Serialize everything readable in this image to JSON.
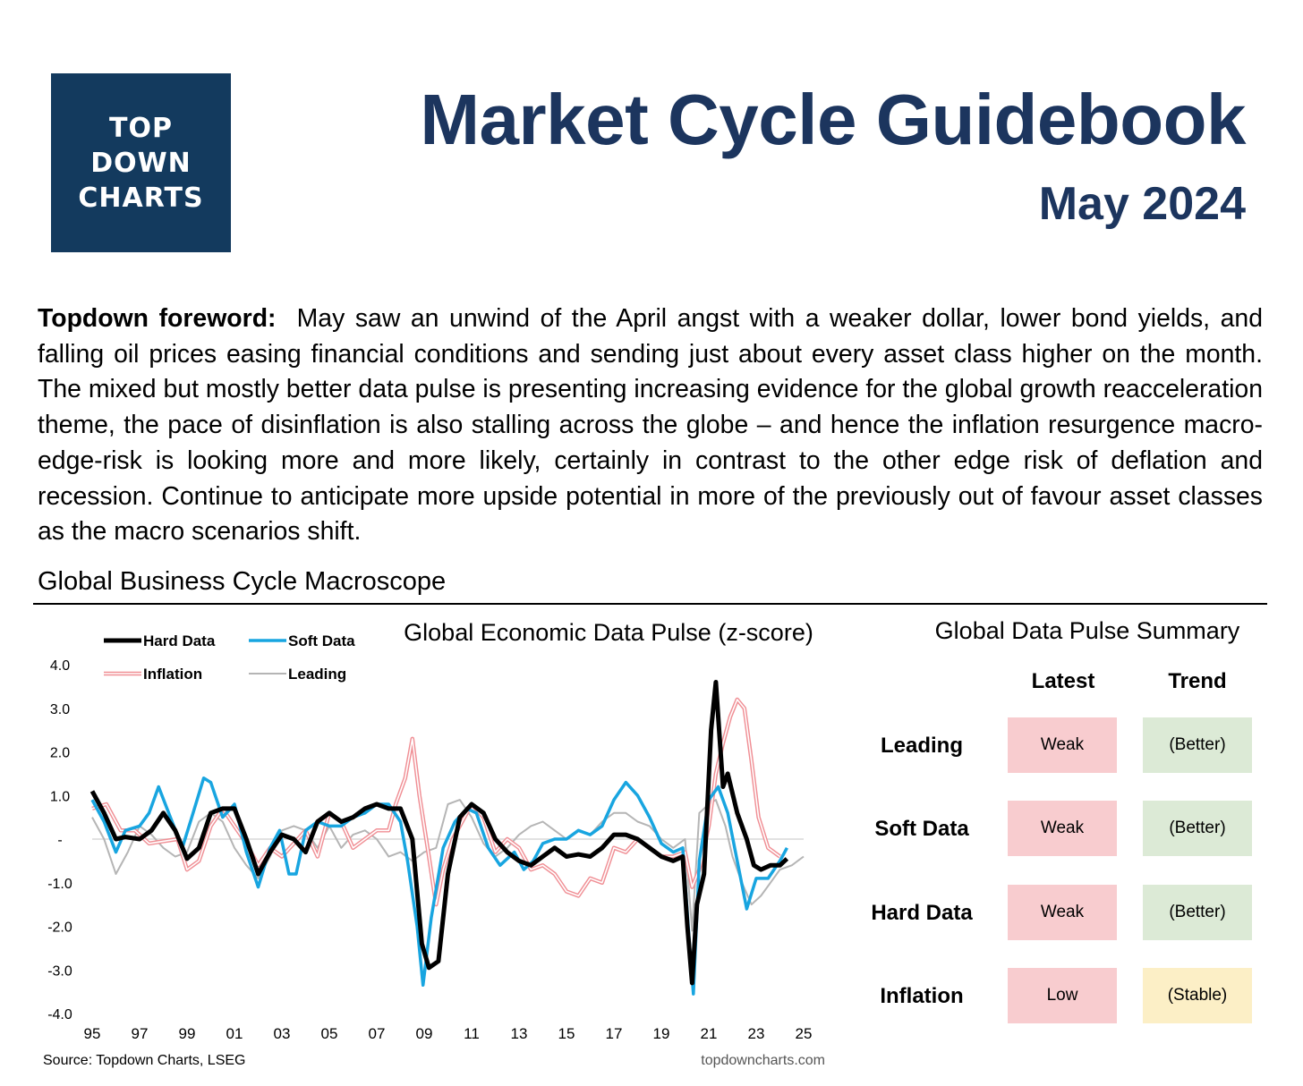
{
  "logo": {
    "line1": "TOP",
    "line2": "DOWN",
    "line3": "CHARTS"
  },
  "header": {
    "title": "Market Cycle Guidebook",
    "subtitle": "May 2024"
  },
  "foreword": {
    "label": "Topdown foreword:",
    "text": "May saw an unwind of the April angst with a weaker dollar, lower bond yields, and falling oil prices easing financial conditions and sending just about every asset class higher on the month. The mixed but mostly better data pulse is presenting increasing evidence for the global growth reacceleration theme, the pace of disinflation is also stalling across the globe – and hence the inflation resurgence macro-edge-risk is looking more and more likely, certainly in contrast to the other edge risk of deflation and recession. Continue to anticipate more upside potential in more of the previously out of favour asset classes as the macro scenarios shift."
  },
  "section_title": "Global Business Cycle Macroscope",
  "chart_data": {
    "type": "line",
    "title": "Global Economic Data Pulse (z-score)",
    "xlabel": "",
    "ylabel": "",
    "xlim": [
      1995,
      2025
    ],
    "ylim": [
      -4,
      4
    ],
    "x_ticks": [
      1995,
      1997,
      1999,
      2001,
      2003,
      2005,
      2007,
      2009,
      2011,
      2013,
      2015,
      2017,
      2019,
      2021,
      2023,
      2025
    ],
    "x_tick_labels": [
      "95",
      "97",
      "99",
      "01",
      "03",
      "05",
      "07",
      "09",
      "11",
      "13",
      "15",
      "17",
      "19",
      "21",
      "23",
      "25"
    ],
    "y_ticks": [
      4,
      3,
      2,
      1,
      0,
      -1,
      -2,
      -3,
      -4
    ],
    "y_tick_labels": [
      "4.0",
      "3.0",
      "2.0",
      "1.0",
      "-",
      "-1.0",
      "-2.0",
      "-3.0",
      "-4.0"
    ],
    "source": "Source: Topdown Charts, LSEG",
    "watermark": "topdowncharts.com",
    "series": [
      {
        "name": "Hard Data",
        "color": "#000000",
        "points": [
          [
            1995.0,
            1.1
          ],
          [
            1995.5,
            0.6
          ],
          [
            1996.0,
            0.0
          ],
          [
            1996.4,
            0.05
          ],
          [
            1997.0,
            0.0
          ],
          [
            1997.5,
            0.2
          ],
          [
            1998.0,
            0.6
          ],
          [
            1998.5,
            0.2
          ],
          [
            1999.0,
            -0.45
          ],
          [
            1999.5,
            -0.2
          ],
          [
            2000.0,
            0.6
          ],
          [
            2000.5,
            0.7
          ],
          [
            2001.0,
            0.7
          ],
          [
            2001.5,
            0.0
          ],
          [
            2002.0,
            -0.8
          ],
          [
            2002.5,
            -0.3
          ],
          [
            2003.0,
            0.1
          ],
          [
            2003.5,
            0.0
          ],
          [
            2004.0,
            -0.3
          ],
          [
            2004.5,
            0.4
          ],
          [
            2005.0,
            0.6
          ],
          [
            2005.5,
            0.4
          ],
          [
            2006.0,
            0.5
          ],
          [
            2006.5,
            0.7
          ],
          [
            2007.0,
            0.8
          ],
          [
            2007.5,
            0.7
          ],
          [
            2008.0,
            0.7
          ],
          [
            2008.5,
            0.0
          ],
          [
            2008.9,
            -2.4
          ],
          [
            2009.2,
            -2.95
          ],
          [
            2009.6,
            -2.8
          ],
          [
            2010.0,
            -0.8
          ],
          [
            2010.5,
            0.5
          ],
          [
            2011.0,
            0.8
          ],
          [
            2011.5,
            0.6
          ],
          [
            2012.0,
            0.0
          ],
          [
            2012.5,
            -0.3
          ],
          [
            2013.0,
            -0.5
          ],
          [
            2013.5,
            -0.6
          ],
          [
            2014.0,
            -0.4
          ],
          [
            2014.5,
            -0.2
          ],
          [
            2015.0,
            -0.4
          ],
          [
            2015.5,
            -0.35
          ],
          [
            2016.0,
            -0.4
          ],
          [
            2016.5,
            -0.2
          ],
          [
            2017.0,
            0.1
          ],
          [
            2017.5,
            0.1
          ],
          [
            2018.0,
            0.0
          ],
          [
            2018.5,
            -0.2
          ],
          [
            2019.0,
            -0.4
          ],
          [
            2019.5,
            -0.5
          ],
          [
            2019.9,
            -0.4
          ],
          [
            2020.1,
            -2.0
          ],
          [
            2020.3,
            -3.3
          ],
          [
            2020.5,
            -1.5
          ],
          [
            2020.8,
            -0.8
          ],
          [
            2021.1,
            2.5
          ],
          [
            2021.3,
            3.6
          ],
          [
            2021.6,
            1.2
          ],
          [
            2021.8,
            1.5
          ],
          [
            2022.2,
            0.6
          ],
          [
            2022.6,
            0.0
          ],
          [
            2022.9,
            -0.6
          ],
          [
            2023.2,
            -0.7
          ],
          [
            2023.6,
            -0.6
          ],
          [
            2024.0,
            -0.6
          ],
          [
            2024.3,
            -0.45
          ]
        ]
      },
      {
        "name": "Soft Data",
        "color": "#18a5e0",
        "points": [
          [
            1995.0,
            0.9
          ],
          [
            1995.5,
            0.4
          ],
          [
            1996.0,
            -0.3
          ],
          [
            1996.4,
            0.2
          ],
          [
            1997.0,
            0.3
          ],
          [
            1997.4,
            0.6
          ],
          [
            1997.8,
            1.2
          ],
          [
            1998.3,
            0.5
          ],
          [
            1998.8,
            -0.2
          ],
          [
            1999.2,
            0.5
          ],
          [
            1999.7,
            1.4
          ],
          [
            2000.0,
            1.3
          ],
          [
            2000.5,
            0.5
          ],
          [
            2001.0,
            0.8
          ],
          [
            2001.5,
            -0.3
          ],
          [
            2002.0,
            -1.1
          ],
          [
            2002.5,
            -0.2
          ],
          [
            2002.9,
            0.2
          ],
          [
            2003.3,
            -0.8
          ],
          [
            2003.6,
            -0.8
          ],
          [
            2004.0,
            0.2
          ],
          [
            2004.5,
            0.4
          ],
          [
            2005.0,
            0.3
          ],
          [
            2005.5,
            0.3
          ],
          [
            2006.0,
            0.5
          ],
          [
            2006.5,
            0.6
          ],
          [
            2007.0,
            0.8
          ],
          [
            2007.5,
            0.8
          ],
          [
            2008.0,
            0.4
          ],
          [
            2008.3,
            -0.5
          ],
          [
            2008.7,
            -2.0
          ],
          [
            2008.95,
            -3.35
          ],
          [
            2009.3,
            -1.8
          ],
          [
            2009.8,
            -0.2
          ],
          [
            2010.3,
            0.4
          ],
          [
            2010.8,
            0.7
          ],
          [
            2011.2,
            0.6
          ],
          [
            2011.7,
            -0.2
          ],
          [
            2012.2,
            -0.6
          ],
          [
            2012.8,
            -0.3
          ],
          [
            2013.2,
            -0.7
          ],
          [
            2013.6,
            -0.5
          ],
          [
            2014.0,
            -0.1
          ],
          [
            2014.5,
            0.0
          ],
          [
            2015.0,
            0.0
          ],
          [
            2015.5,
            0.2
          ],
          [
            2016.0,
            0.1
          ],
          [
            2016.5,
            0.3
          ],
          [
            2017.0,
            0.9
          ],
          [
            2017.5,
            1.3
          ],
          [
            2018.0,
            1.0
          ],
          [
            2018.5,
            0.5
          ],
          [
            2019.0,
            -0.1
          ],
          [
            2019.5,
            -0.3
          ],
          [
            2019.9,
            -0.2
          ],
          [
            2020.2,
            -2.5
          ],
          [
            2020.35,
            -3.55
          ],
          [
            2020.6,
            -0.5
          ],
          [
            2021.0,
            0.9
          ],
          [
            2021.4,
            1.2
          ],
          [
            2021.8,
            0.6
          ],
          [
            2022.2,
            -0.5
          ],
          [
            2022.6,
            -1.6
          ],
          [
            2023.0,
            -0.9
          ],
          [
            2023.5,
            -0.9
          ],
          [
            2024.0,
            -0.5
          ],
          [
            2024.3,
            -0.2
          ]
        ]
      },
      {
        "name": "Inflation",
        "color": "#f08f95",
        "points": [
          [
            1995.0,
            0.7
          ],
          [
            1995.6,
            0.8
          ],
          [
            1996.2,
            0.2
          ],
          [
            1996.8,
            0.2
          ],
          [
            1997.4,
            -0.1
          ],
          [
            1998.0,
            -0.05
          ],
          [
            1998.6,
            0.0
          ],
          [
            1999.0,
            -0.7
          ],
          [
            1999.5,
            -0.5
          ],
          [
            2000.0,
            0.3
          ],
          [
            2000.5,
            0.7
          ],
          [
            2001.0,
            0.3
          ],
          [
            2001.5,
            -0.1
          ],
          [
            2002.0,
            -0.6
          ],
          [
            2002.5,
            -0.2
          ],
          [
            2003.0,
            -0.4
          ],
          [
            2003.5,
            -0.1
          ],
          [
            2004.0,
            0.2
          ],
          [
            2004.5,
            -0.4
          ],
          [
            2005.0,
            0.6
          ],
          [
            2005.5,
            0.4
          ],
          [
            2006.0,
            -0.2
          ],
          [
            2006.5,
            0.0
          ],
          [
            2007.0,
            0.2
          ],
          [
            2007.5,
            0.2
          ],
          [
            2007.8,
            0.8
          ],
          [
            2008.2,
            1.4
          ],
          [
            2008.5,
            2.3
          ],
          [
            2008.8,
            1.0
          ],
          [
            2009.2,
            -0.4
          ],
          [
            2009.5,
            -1.5
          ],
          [
            2009.8,
            -0.7
          ],
          [
            2010.2,
            0.0
          ],
          [
            2010.6,
            0.4
          ],
          [
            2011.0,
            0.8
          ],
          [
            2011.5,
            0.5
          ],
          [
            2012.0,
            -0.3
          ],
          [
            2012.5,
            0.0
          ],
          [
            2013.0,
            -0.2
          ],
          [
            2013.5,
            -0.7
          ],
          [
            2014.0,
            -0.6
          ],
          [
            2014.5,
            -0.8
          ],
          [
            2015.0,
            -1.2
          ],
          [
            2015.5,
            -1.3
          ],
          [
            2016.0,
            -0.9
          ],
          [
            2016.5,
            -1.0
          ],
          [
            2017.0,
            -0.2
          ],
          [
            2017.5,
            -0.3
          ],
          [
            2018.0,
            0.0
          ],
          [
            2018.5,
            -0.2
          ],
          [
            2019.0,
            -0.4
          ],
          [
            2019.5,
            -0.4
          ],
          [
            2020.0,
            -0.3
          ],
          [
            2020.3,
            -1.1
          ],
          [
            2020.6,
            -0.7
          ],
          [
            2021.0,
            0.3
          ],
          [
            2021.3,
            1.5
          ],
          [
            2021.6,
            2.2
          ],
          [
            2021.9,
            2.8
          ],
          [
            2022.2,
            3.2
          ],
          [
            2022.5,
            3.0
          ],
          [
            2022.8,
            1.8
          ],
          [
            2023.1,
            0.5
          ],
          [
            2023.5,
            -0.2
          ],
          [
            2024.0,
            -0.4
          ]
        ]
      },
      {
        "name": "Leading",
        "color": "#b5b5b5",
        "points": [
          [
            1995.0,
            0.5
          ],
          [
            1995.5,
            0.0
          ],
          [
            1996.0,
            -0.8
          ],
          [
            1996.5,
            -0.3
          ],
          [
            1997.0,
            0.3
          ],
          [
            1997.5,
            0.1
          ],
          [
            1998.0,
            -0.2
          ],
          [
            1998.5,
            -0.4
          ],
          [
            1999.0,
            -0.3
          ],
          [
            1999.5,
            0.4
          ],
          [
            2000.0,
            0.6
          ],
          [
            2000.5,
            0.4
          ],
          [
            2001.0,
            -0.2
          ],
          [
            2001.5,
            -0.6
          ],
          [
            2002.0,
            -0.9
          ],
          [
            2002.5,
            -0.4
          ],
          [
            2003.0,
            0.2
          ],
          [
            2003.5,
            0.3
          ],
          [
            2004.0,
            0.2
          ],
          [
            2004.5,
            -0.2
          ],
          [
            2005.0,
            0.3
          ],
          [
            2005.5,
            -0.2
          ],
          [
            2006.0,
            0.1
          ],
          [
            2006.5,
            0.2
          ],
          [
            2007.0,
            0.0
          ],
          [
            2007.5,
            -0.4
          ],
          [
            2008.0,
            -0.3
          ],
          [
            2008.5,
            -0.5
          ],
          [
            2009.0,
            -0.3
          ],
          [
            2009.5,
            -0.2
          ],
          [
            2010.0,
            0.8
          ],
          [
            2010.5,
            0.9
          ],
          [
            2011.0,
            0.5
          ],
          [
            2011.5,
            -0.1
          ],
          [
            2012.0,
            -0.4
          ],
          [
            2012.5,
            -0.2
          ],
          [
            2013.0,
            0.1
          ],
          [
            2013.5,
            0.3
          ],
          [
            2014.0,
            0.4
          ],
          [
            2014.5,
            0.2
          ],
          [
            2015.0,
            0.0
          ],
          [
            2015.5,
            0.2
          ],
          [
            2016.0,
            0.1
          ],
          [
            2016.5,
            0.4
          ],
          [
            2017.0,
            0.6
          ],
          [
            2017.5,
            0.6
          ],
          [
            2018.0,
            0.4
          ],
          [
            2018.5,
            0.3
          ],
          [
            2019.0,
            0.0
          ],
          [
            2019.5,
            -0.2
          ],
          [
            2020.0,
            0.0
          ],
          [
            2020.3,
            -2.1
          ],
          [
            2020.6,
            0.6
          ],
          [
            2021.0,
            0.8
          ],
          [
            2021.3,
            0.9
          ],
          [
            2021.7,
            0.3
          ],
          [
            2022.0,
            -0.4
          ],
          [
            2022.4,
            -1.0
          ],
          [
            2022.8,
            -1.5
          ],
          [
            2023.2,
            -1.3
          ],
          [
            2023.6,
            -1.0
          ],
          [
            2024.0,
            -0.7
          ],
          [
            2024.5,
            -0.6
          ],
          [
            2025.0,
            -0.4
          ]
        ]
      }
    ]
  },
  "summary": {
    "title": "Global Data Pulse Summary",
    "col_latest": "Latest",
    "col_trend": "Trend",
    "rows": [
      {
        "label": "Leading",
        "latest": "Weak",
        "trend": "(Better)"
      },
      {
        "label": "Soft Data",
        "latest": "Weak",
        "trend": "(Better)"
      },
      {
        "label": "Hard Data",
        "latest": "Weak",
        "trend": "(Better)"
      },
      {
        "label": "Inflation",
        "latest": "Low",
        "trend": "(Stable)"
      }
    ]
  }
}
